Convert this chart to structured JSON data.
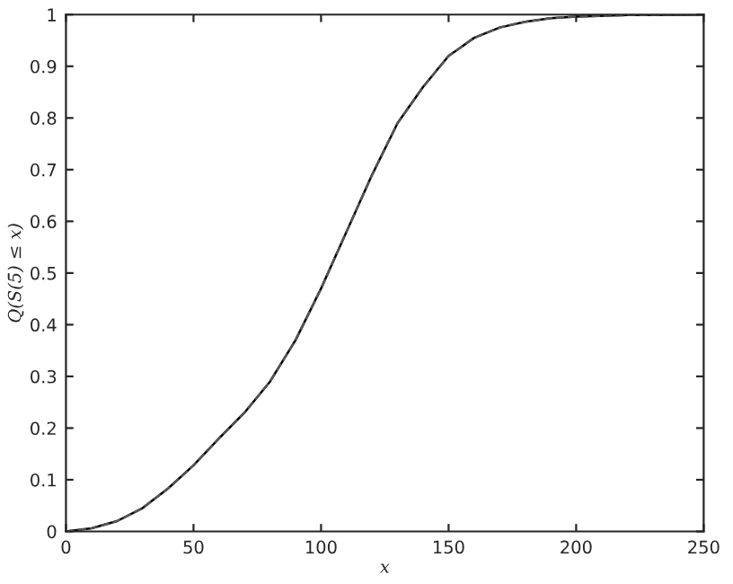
{
  "chart_data": {
    "type": "line",
    "xlabel": "x",
    "ylabel": "Q(S(5̄) ≤ x)",
    "x": [
      0,
      10,
      20,
      30,
      40,
      50,
      60,
      70,
      80,
      90,
      100,
      110,
      120,
      130,
      140,
      150,
      160,
      170,
      180,
      190,
      200,
      220,
      250
    ],
    "series": [
      {
        "color": "#000000",
        "line_style": "solid",
        "values": [
          0,
          0.006,
          0.02,
          0.045,
          0.083,
          0.128,
          0.18,
          0.23,
          0.29,
          0.37,
          0.47,
          0.58,
          0.69,
          0.79,
          0.86,
          0.92,
          0.955,
          0.975,
          0.986,
          0.993,
          0.996,
          0.999,
          1
        ]
      },
      {
        "color": "#555555",
        "line_style": "dashed",
        "values": [
          0,
          0.006,
          0.02,
          0.045,
          0.083,
          0.128,
          0.18,
          0.23,
          0.29,
          0.37,
          0.47,
          0.58,
          0.69,
          0.79,
          0.86,
          0.92,
          0.955,
          0.975,
          0.986,
          0.993,
          0.996,
          0.999,
          1
        ]
      }
    ],
    "xlim": [
      0,
      250
    ],
    "xticks": [
      0,
      50,
      100,
      150,
      200,
      250
    ],
    "ylim": [
      0,
      1
    ],
    "yticks": [
      0,
      0.1,
      0.2,
      0.3,
      0.4,
      0.5,
      0.6,
      0.7,
      0.8,
      0.9,
      1
    ],
    "grid": false,
    "legend": false
  }
}
